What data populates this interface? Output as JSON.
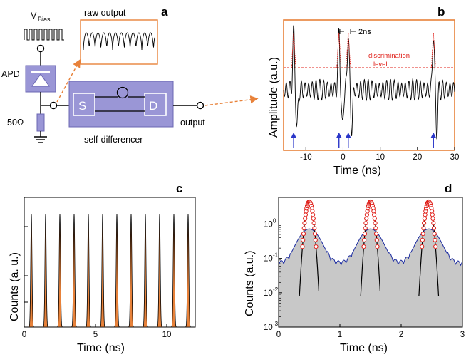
{
  "panel_a": {
    "letter": "a",
    "vbias_label": "V",
    "vbias_sub": "Bias",
    "apd_label": "APD",
    "resistor_label": "50Ω",
    "raw_output_label": "raw output",
    "s_label": "S",
    "d_label": "D",
    "output_label": "output",
    "self_differencer_label": "self-differencer",
    "colors": {
      "box": "#9a96d6",
      "box_dark": "#6b67b3",
      "accent": "#e8823a"
    }
  },
  "chart_data": [
    {
      "panel": "b",
      "type": "line",
      "title": "",
      "xlabel": "Time (ns)",
      "ylabel": "Amplitude (a.u.)",
      "xlim": [
        -16,
        30
      ],
      "xticks": [
        -10,
        0,
        10,
        20,
        30
      ],
      "annotations": {
        "pulse_gap": "2ns",
        "discrimination": [
          "discrimination",
          "level"
        ]
      },
      "avalanche_times": [
        -13.3,
        -1.1,
        1.4,
        24.3
      ],
      "colors": {
        "frame": "#e8823a",
        "trace": "#000000",
        "level": "#e0201a",
        "arrow": "#2a36c8"
      }
    },
    {
      "panel": "c",
      "type": "area",
      "xlabel": "Time (ns)",
      "ylabel": "Counts (a. u.)",
      "xlim": [
        0,
        12
      ],
      "xticks": [
        0,
        5,
        10
      ],
      "peak_period_ns": 1.0,
      "first_peak_ns": 0.5,
      "peak_count": 12,
      "colors": {
        "fill": "#e8823a",
        "line": "#000000"
      }
    },
    {
      "panel": "d",
      "type": "line",
      "xlabel": "Time (ns)",
      "ylabel": "Counts (a.u.)",
      "xlim": [
        0,
        3
      ],
      "xticks": [
        0,
        1,
        2,
        3
      ],
      "ylog_range": [
        0.001,
        6
      ],
      "ytick_labels": [
        [
          "10",
          "-3"
        ],
        [
          "10",
          "-2"
        ],
        [
          "10",
          "-1"
        ],
        [
          "10",
          "0"
        ]
      ],
      "peak_centers_ns": [
        0.5,
        1.5,
        2.45
      ],
      "broad_peak_height": 0.65,
      "broad_baseline": 0.08,
      "narrow_peak_height": 4.5,
      "colors": {
        "fill": "#c8c8c8",
        "edge": "#1a2aa0",
        "marker": "#e0201a",
        "fit": "#000000"
      }
    }
  ],
  "letters": {
    "b": "b",
    "c": "c",
    "d": "d"
  }
}
